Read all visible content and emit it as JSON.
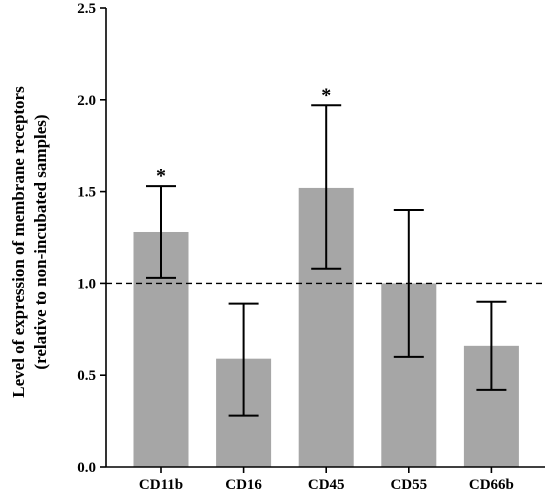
{
  "chart_data": {
    "type": "bar",
    "categories": [
      "CD11b",
      "CD16",
      "CD45",
      "CD55",
      "CD66b"
    ],
    "values": [
      1.28,
      0.59,
      1.52,
      1.0,
      0.66
    ],
    "error_low": [
      1.03,
      0.28,
      1.08,
      0.6,
      0.42
    ],
    "error_high": [
      1.53,
      0.89,
      1.97,
      1.4,
      0.9
    ],
    "significance": [
      "*",
      "",
      "*",
      "",
      ""
    ],
    "ylabel_line1": "Level of expression of membrane receptors",
    "ylabel_line2": "(relative to non-incubated samples)",
    "xlabel": "",
    "title": "",
    "ylim": [
      0,
      2.5
    ],
    "yticks": [
      0.0,
      0.5,
      1.0,
      1.5,
      2.0,
      2.5
    ],
    "ytick_labels": [
      "0.0",
      "0.5",
      "1.0",
      "1.5",
      "2.0",
      "2.5"
    ],
    "reference_line": 1.0,
    "bar_color": "#a6a6a6",
    "grid": false,
    "legend": "none"
  }
}
